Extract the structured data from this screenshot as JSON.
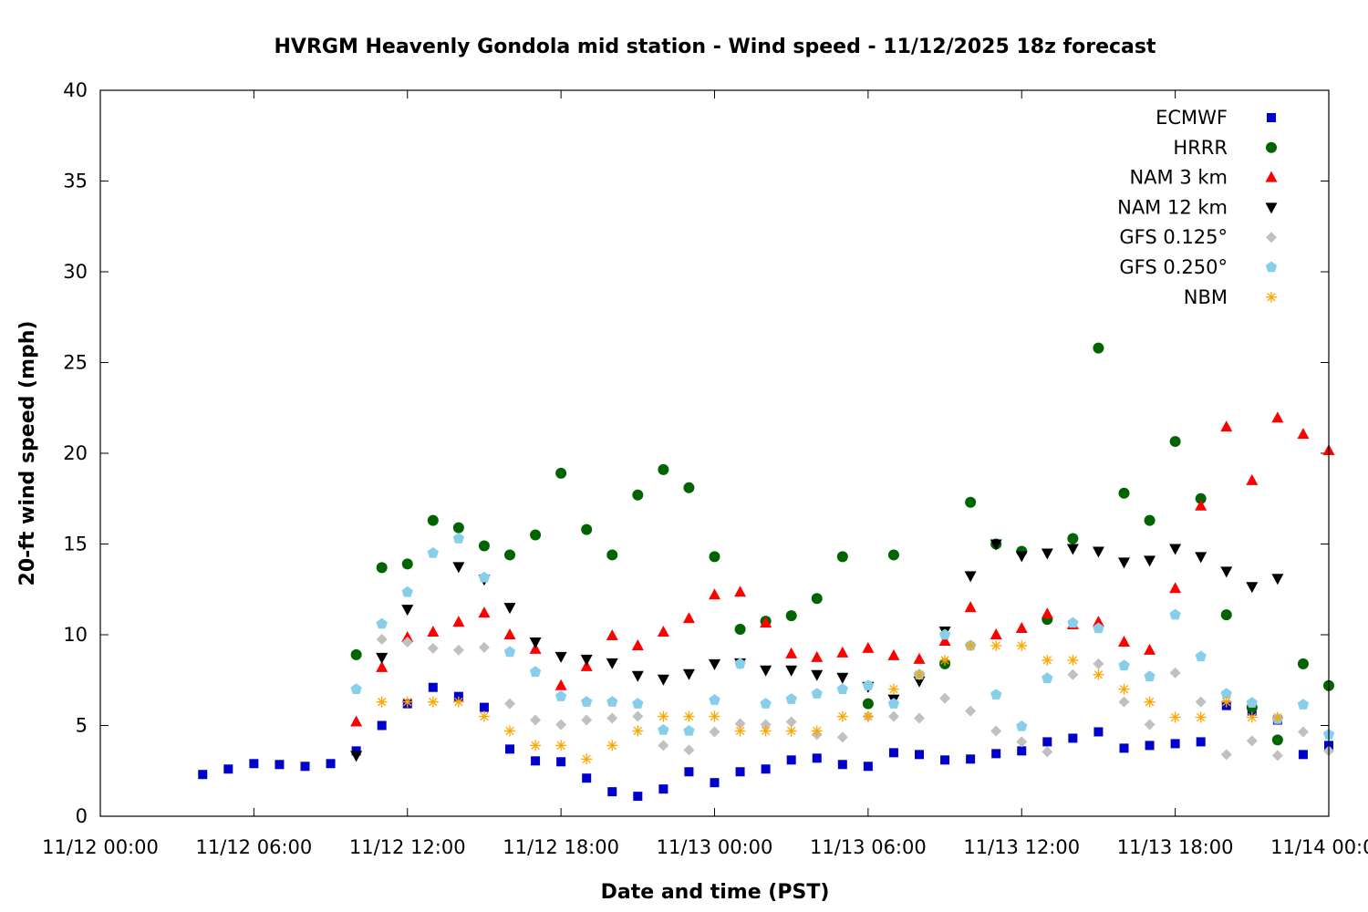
{
  "chart_data": {
    "type": "scatter",
    "title": "HVRGM Heavenly Gondola mid station - Wind speed - 11/12/2025 18z forecast",
    "xlabel": "Date and time (PST)",
    "ylabel": "20-ft wind speed (mph)",
    "x_unit": "hours since 11/12 00:00 PST",
    "xlim": [
      0,
      48
    ],
    "ylim": [
      0,
      40
    ],
    "x_ticks": [
      {
        "value": 0,
        "label": "11/12 00:00"
      },
      {
        "value": 6,
        "label": "11/12 06:00"
      },
      {
        "value": 12,
        "label": "11/12 12:00"
      },
      {
        "value": 18,
        "label": "11/12 18:00"
      },
      {
        "value": 24,
        "label": "11/13 00:00"
      },
      {
        "value": 30,
        "label": "11/13 06:00"
      },
      {
        "value": 36,
        "label": "11/13 12:00"
      },
      {
        "value": 42,
        "label": "11/13 18:00"
      },
      {
        "value": 48,
        "label": "11/14 00:00"
      }
    ],
    "y_ticks": [
      {
        "value": 0,
        "label": "0"
      },
      {
        "value": 5,
        "label": "5"
      },
      {
        "value": 10,
        "label": "10"
      },
      {
        "value": 15,
        "label": "15"
      },
      {
        "value": 20,
        "label": "20"
      },
      {
        "value": 25,
        "label": "25"
      },
      {
        "value": 30,
        "label": "30"
      },
      {
        "value": 35,
        "label": "35"
      },
      {
        "value": 40,
        "label": "40"
      }
    ],
    "grid": false,
    "legend_position": "top-right",
    "x": [
      4,
      5,
      6,
      7,
      8,
      9,
      10,
      11,
      12,
      13,
      14,
      15,
      16,
      17,
      18,
      19,
      20,
      21,
      22,
      23,
      24,
      25,
      26,
      27,
      28,
      29,
      30,
      31,
      32,
      33,
      34,
      35,
      36,
      37,
      38,
      39,
      40,
      41,
      42,
      43,
      44,
      45,
      46,
      47,
      48
    ],
    "series": [
      {
        "name": "ECMWF",
        "marker": "square",
        "color": "#0000cc",
        "values": [
          2.3,
          2.6,
          2.9,
          2.85,
          2.75,
          2.9,
          3.6,
          5.0,
          6.2,
          7.1,
          6.6,
          6.0,
          3.7,
          3.05,
          3.0,
          2.1,
          1.35,
          1.1,
          1.5,
          2.45,
          1.85,
          2.45,
          2.6,
          3.1,
          3.2,
          2.85,
          2.75,
          3.5,
          3.4,
          3.1,
          3.15,
          3.45,
          3.6,
          4.1,
          4.3,
          4.65,
          3.75,
          3.9,
          4.0,
          4.1,
          6.1,
          5.8,
          5.3,
          3.4,
          3.9
        ]
      },
      {
        "name": "HRRR",
        "marker": "circle",
        "color": "#006400",
        "values": [
          null,
          null,
          null,
          null,
          null,
          null,
          8.9,
          13.7,
          13.9,
          16.3,
          15.9,
          14.9,
          14.4,
          15.5,
          18.9,
          15.8,
          14.4,
          17.7,
          19.1,
          18.1,
          14.3,
          10.3,
          10.75,
          11.05,
          12.0,
          14.3,
          6.2,
          14.4,
          null,
          8.4,
          17.3,
          15.0,
          14.6,
          10.85,
          15.3,
          25.8,
          17.8,
          16.3,
          20.65,
          17.5,
          11.1,
          6.0,
          4.2,
          8.4,
          7.2
        ]
      },
      {
        "name": "NAM 3 km",
        "marker": "triangle-up",
        "color": "#ff0000",
        "values": [
          null,
          null,
          null,
          null,
          null,
          null,
          5.2,
          8.2,
          9.85,
          10.15,
          10.7,
          11.2,
          10.0,
          9.2,
          7.2,
          8.25,
          9.95,
          9.4,
          10.15,
          10.9,
          12.2,
          12.35,
          10.65,
          8.95,
          8.75,
          9.0,
          9.25,
          8.85,
          8.65,
          9.65,
          11.5,
          10.0,
          10.35,
          11.15,
          10.55,
          10.7,
          9.6,
          9.15,
          12.55,
          17.1,
          21.45,
          18.5,
          21.95,
          21.05,
          20.15
        ]
      },
      {
        "name": "NAM 12 km",
        "marker": "triangle-down",
        "color": "#000000",
        "values": [
          null,
          null,
          null,
          null,
          null,
          null,
          3.35,
          8.75,
          11.4,
          null,
          13.75,
          13.05,
          11.5,
          9.6,
          8.8,
          8.65,
          8.45,
          7.75,
          7.55,
          7.85,
          8.4,
          8.45,
          8.05,
          8.05,
          7.8,
          7.65,
          7.15,
          6.45,
          7.45,
          10.2,
          13.25,
          15.0,
          14.35,
          14.5,
          14.75,
          14.6,
          14.0,
          14.1,
          14.75,
          14.3,
          13.5,
          12.65,
          13.1,
          null,
          null
        ]
      },
      {
        "name": "GFS 0.125°",
        "marker": "diamond",
        "color": "#c0c0c0",
        "values": [
          null,
          null,
          null,
          null,
          null,
          null,
          null,
          9.75,
          9.6,
          9.25,
          9.15,
          9.3,
          6.2,
          5.3,
          5.05,
          5.3,
          5.4,
          5.5,
          3.9,
          3.65,
          4.65,
          5.1,
          5.05,
          5.2,
          4.5,
          4.35,
          5.5,
          5.5,
          5.4,
          6.5,
          5.8,
          4.7,
          4.1,
          3.55,
          7.8,
          8.4,
          6.3,
          5.05,
          7.9,
          6.3,
          3.4,
          4.15,
          3.35,
          4.65,
          3.6
        ]
      },
      {
        "name": "GFS 0.250°",
        "marker": "pentagon",
        "color": "#87ceeb",
        "values": [
          null,
          null,
          null,
          null,
          null,
          null,
          7.0,
          10.6,
          12.35,
          14.5,
          15.3,
          13.15,
          9.05,
          7.95,
          6.6,
          6.3,
          6.3,
          6.2,
          4.75,
          4.7,
          6.4,
          8.4,
          6.2,
          6.45,
          6.75,
          7.0,
          7.2,
          6.2,
          7.8,
          10.0,
          9.4,
          6.7,
          4.95,
          7.6,
          10.65,
          10.35,
          8.3,
          7.7,
          11.1,
          8.8,
          6.75,
          6.25,
          5.35,
          6.15,
          4.5
        ]
      },
      {
        "name": "NBM",
        "marker": "asterisk",
        "color": "#ffa500",
        "values": [
          null,
          null,
          null,
          null,
          null,
          null,
          null,
          6.3,
          6.3,
          6.3,
          6.3,
          5.5,
          4.7,
          3.9,
          3.9,
          3.15,
          3.9,
          4.7,
          5.5,
          5.5,
          5.5,
          4.7,
          4.7,
          4.7,
          4.7,
          5.5,
          5.5,
          7.0,
          7.8,
          8.6,
          9.4,
          9.4,
          9.4,
          8.6,
          8.6,
          7.8,
          7.0,
          6.3,
          5.45,
          5.45,
          6.3,
          5.45,
          5.45,
          null,
          null
        ]
      }
    ]
  }
}
